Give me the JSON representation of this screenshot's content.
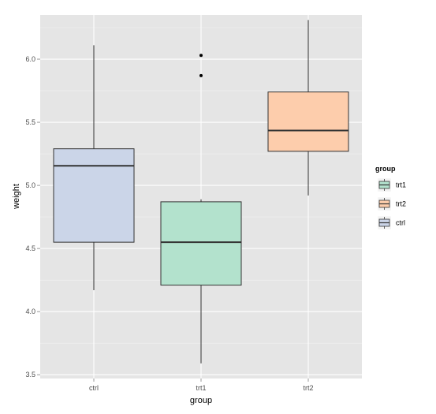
{
  "chart_data": {
    "type": "boxplot",
    "xlabel": "group",
    "ylabel": "weight",
    "categories": [
      "ctrl",
      "trt1",
      "trt2"
    ],
    "ylim": [
      3.47,
      6.35
    ],
    "y_ticks": [
      3.5,
      4.0,
      4.5,
      5.0,
      5.5,
      6.0
    ],
    "y_tick_labels": [
      "3.5",
      "4.0",
      "4.5",
      "5.0",
      "5.5",
      "6.0"
    ],
    "grid": true,
    "legend": {
      "title": "group",
      "position": "right",
      "entries": [
        "trt1",
        "trt2",
        "ctrl"
      ]
    },
    "colors": {
      "ctrl": "#cbd5e8",
      "trt1": "#b3e2cd",
      "trt2": "#fdcdac",
      "panel_bg": "#e5e5e5",
      "grid_major": "#ffffff",
      "grid_minor": "#f2f2f2"
    },
    "series": [
      {
        "name": "ctrl",
        "min": 4.17,
        "q1": 4.55,
        "median": 5.155,
        "q3": 5.29,
        "max": 6.11,
        "outliers": []
      },
      {
        "name": "trt1",
        "min": 3.59,
        "q1": 4.21,
        "median": 4.55,
        "q3": 4.87,
        "max": 4.89,
        "outliers": [
          5.87,
          6.03
        ]
      },
      {
        "name": "trt2",
        "min": 4.92,
        "q1": 5.27,
        "median": 5.435,
        "q3": 5.74,
        "max": 6.31,
        "outliers": []
      }
    ]
  }
}
